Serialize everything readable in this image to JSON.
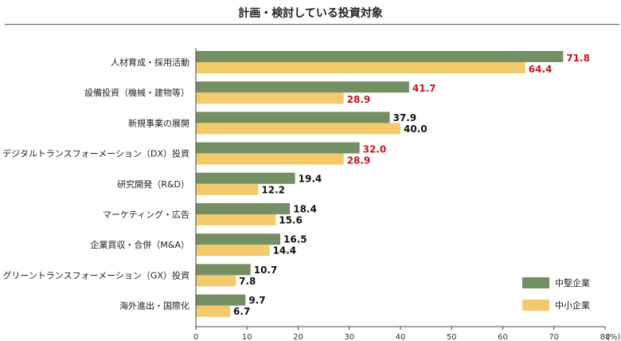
{
  "chart_data": {
    "type": "bar",
    "orientation": "horizontal",
    "title": "計画・検討している投資対象",
    "categories": [
      "人材育成・採用活動",
      "設備投資（機械・建物等）",
      "新規事業の展開",
      "デジタルトランスフォーメーション（DX）投資",
      "研究開発（R&D）",
      "マーケティング・広告",
      "企業買収・合併（M&A）",
      "グリーントランスフォーメーション（GX）投資",
      "海外進出・国際化"
    ],
    "series": [
      {
        "name": "中堅企業",
        "color": "#748f63",
        "values": [
          71.8,
          41.7,
          37.9,
          32.0,
          19.4,
          18.4,
          16.5,
          10.7,
          9.7
        ],
        "labels": [
          "71.8",
          "41.7",
          "37.9",
          "32.0",
          "19.4",
          "18.4",
          "16.5",
          "10.7",
          "9.7"
        ]
      },
      {
        "name": "中小企業",
        "color": "#f2c96b",
        "values": [
          64.4,
          28.9,
          40.0,
          28.9,
          12.2,
          15.6,
          14.4,
          7.8,
          6.7
        ],
        "labels": [
          "64.4",
          "28.9",
          "40.0",
          "28.9",
          "12.2",
          "15.6",
          "14.4",
          "7.8",
          "6.7"
        ]
      }
    ],
    "highlight_color": "#c8141e",
    "highlighted_categories": [
      0,
      1,
      3
    ],
    "xlim": [
      0,
      80
    ],
    "xticks": [
      "0",
      "10",
      "20",
      "30",
      "40",
      "50",
      "60",
      "70",
      "80"
    ],
    "unit": "(%)",
    "legend_position": "bottom-right",
    "grid": false
  }
}
